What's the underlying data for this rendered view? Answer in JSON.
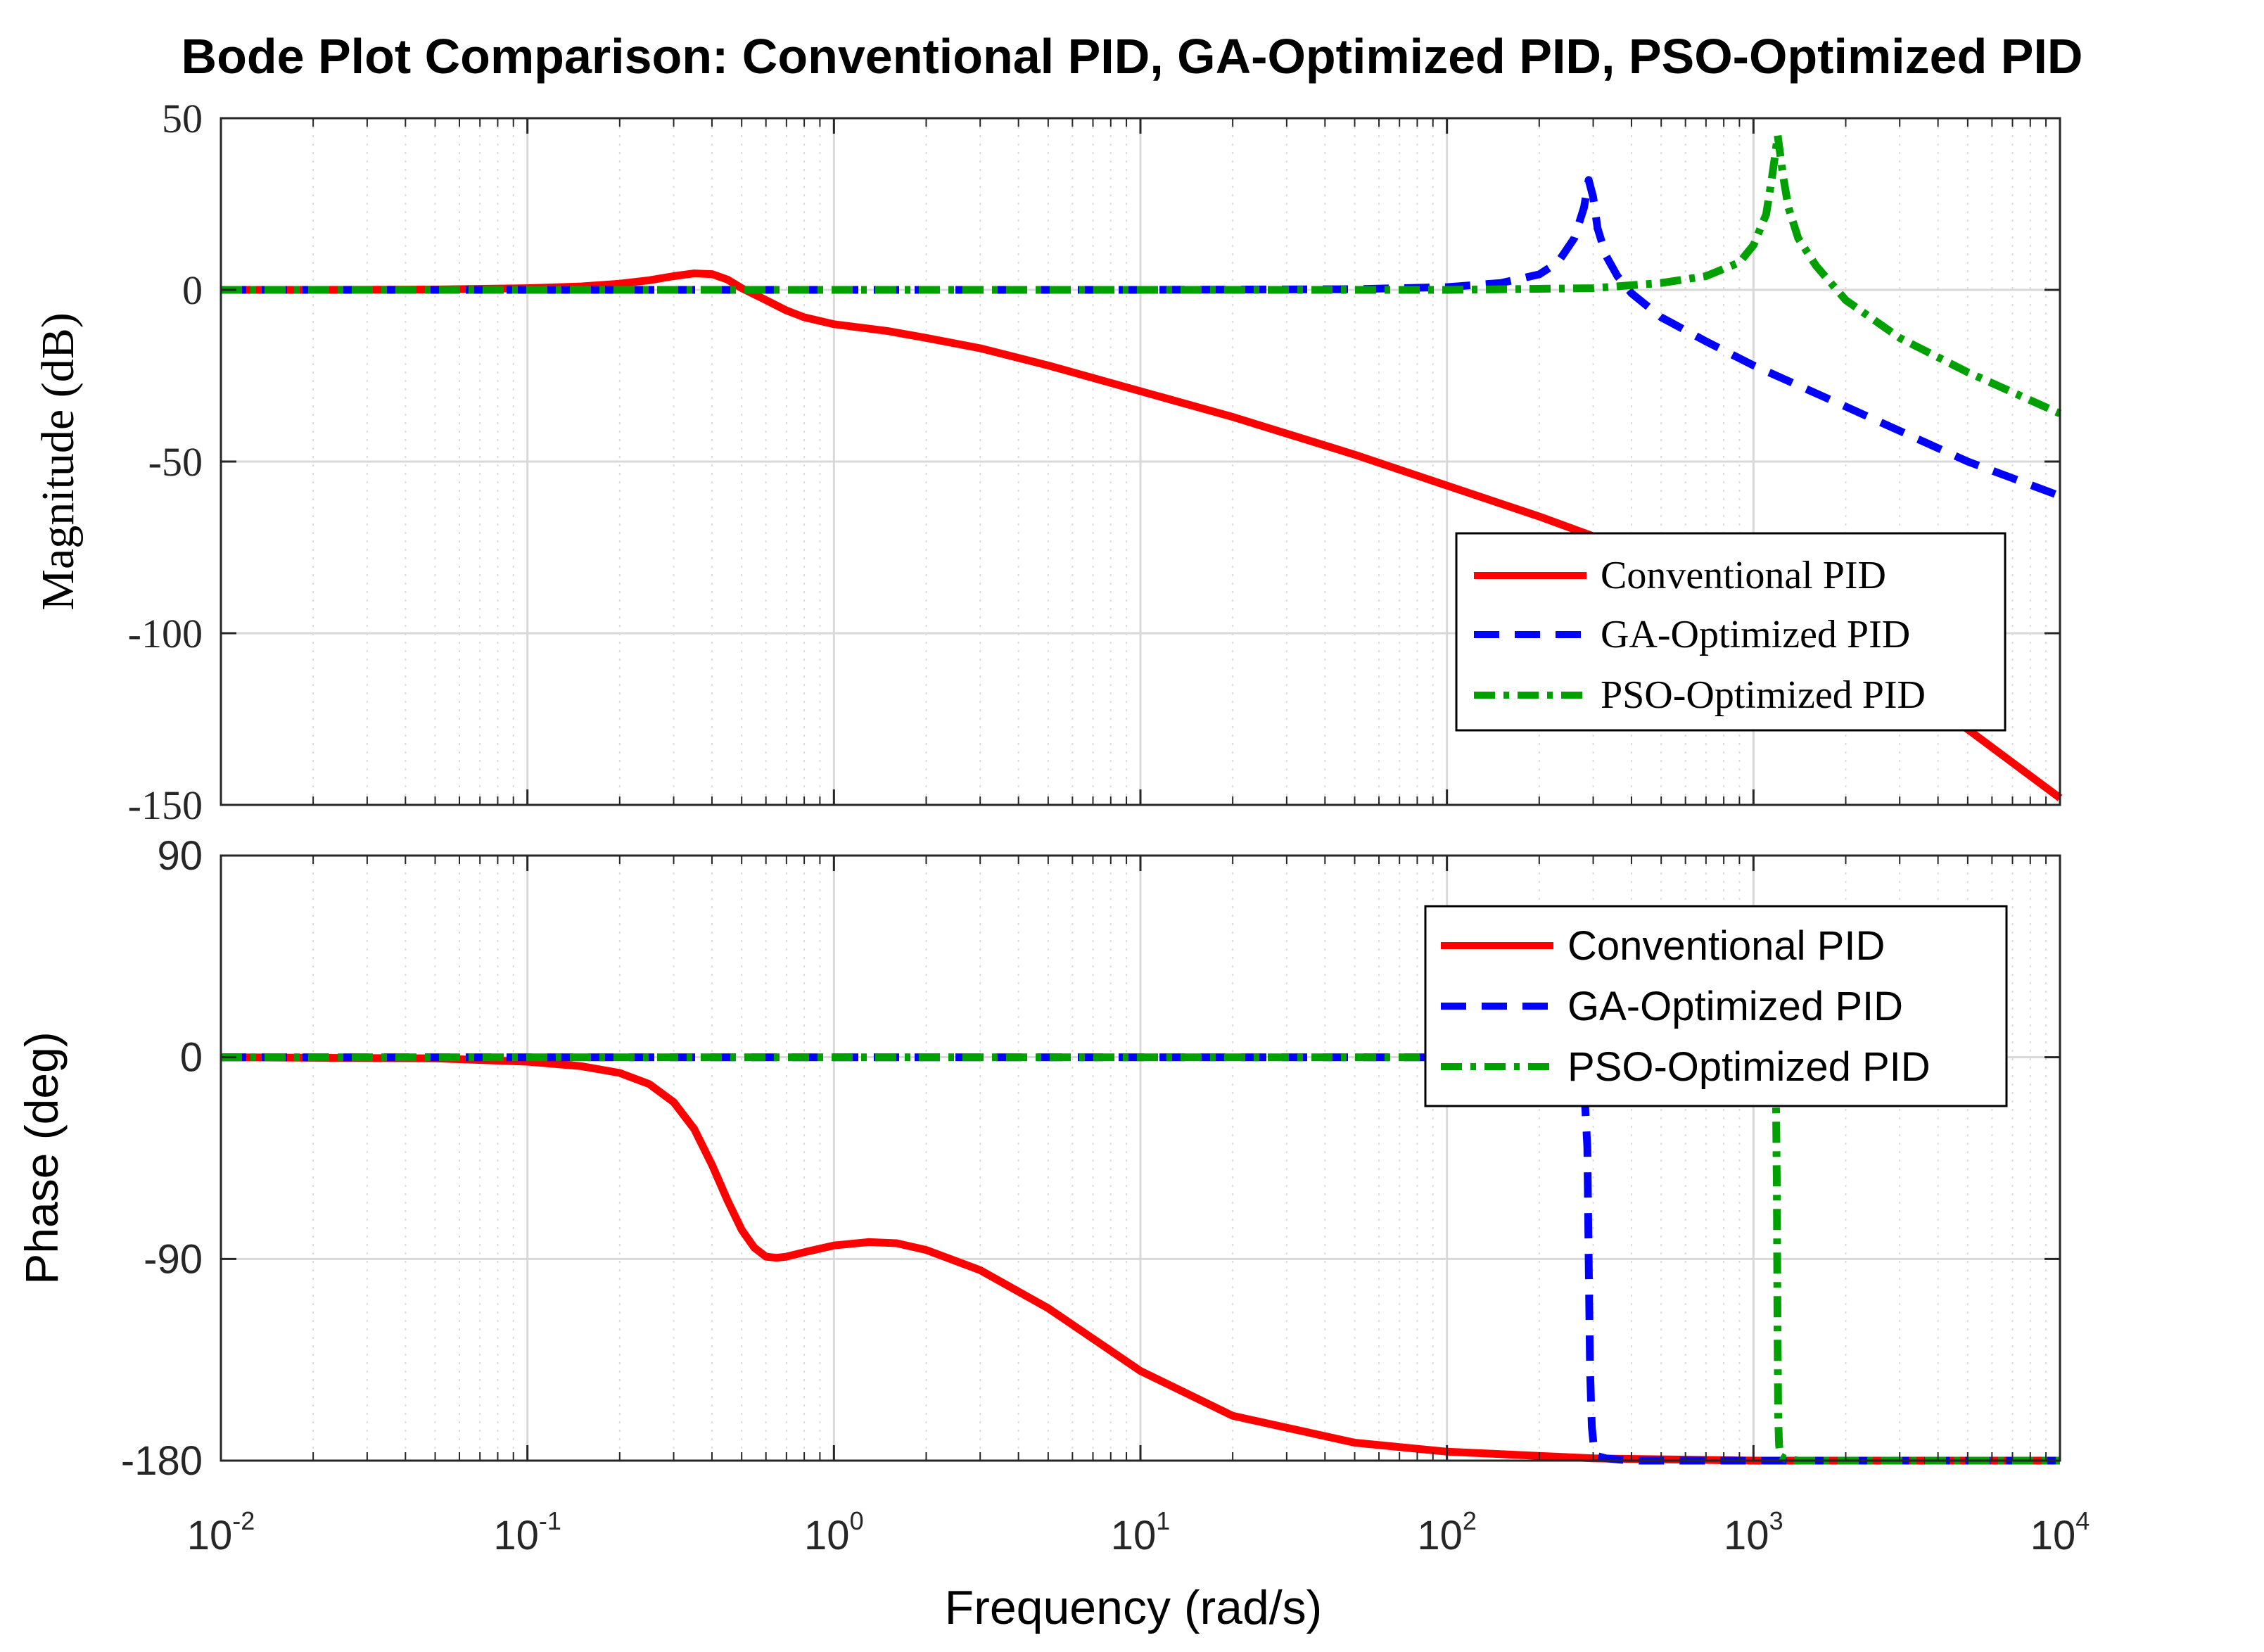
{
  "chart_data": {
    "type": "line",
    "title": "Bode Plot Comparison: Conventional PID, GA-Optimized PID, PSO-Optimized PID",
    "xlabel": "Frequency  (rad/s)",
    "xscale": "log",
    "xlim": [
      0.01,
      10000
    ],
    "x_ticks": [
      {
        "base": "10",
        "exp": "-2"
      },
      {
        "base": "10",
        "exp": "-1"
      },
      {
        "base": "10",
        "exp": "0"
      },
      {
        "base": "10",
        "exp": "1"
      },
      {
        "base": "10",
        "exp": "2"
      },
      {
        "base": "10",
        "exp": "3"
      },
      {
        "base": "10",
        "exp": "4"
      }
    ],
    "grid": true,
    "subplots": [
      {
        "name": "magnitude",
        "ylabel": "Magnitude (dB)",
        "ylim": [
          -150,
          50
        ],
        "yticks": [
          50,
          0,
          -50,
          -100,
          -150
        ],
        "ytick_labels": [
          "50",
          "0",
          "-50",
          "-100",
          "-150"
        ],
        "legend_position": "lower-right",
        "legend_entries": [
          "Conventional PID",
          "GA-Optimized PID",
          "PSO-Optimized PID"
        ],
        "series": [
          {
            "name": "Conventional PID",
            "color": "#ff0000",
            "style": "solid",
            "x": [
              0.01,
              0.02,
              0.05,
              0.1,
              0.15,
              0.2,
              0.25,
              0.3,
              0.35,
              0.4,
              0.45,
              0.5,
              0.6,
              0.7,
              0.8,
              1,
              1.5,
              2,
              3,
              5,
              10,
              20,
              50,
              100,
              200,
              500,
              1000,
              2000,
              5000,
              10000
            ],
            "y": [
              0,
              0,
              0.1,
              0.5,
              1,
              1.8,
              2.8,
              4,
              4.8,
              4.6,
              3,
              0.5,
              -3,
              -6,
              -8,
              -10,
              -12,
              -14,
              -17,
              -22,
              -29.5,
              -37,
              -48,
              -57,
              -66,
              -79,
              -90,
              -103,
              -128,
              -148
            ]
          },
          {
            "name": "GA-Optimized PID",
            "color": "#0000ff",
            "style": "dashed",
            "x": [
              0.01,
              1,
              10,
              50,
              100,
              150,
              200,
              230,
              260,
              280,
              290,
              300,
              310,
              330,
              360,
              400,
              500,
              700,
              1000,
              2000,
              5000,
              10000
            ],
            "y": [
              0,
              0,
              0,
              0.2,
              0.8,
              2,
              4.5,
              8,
              15,
              24,
              32,
              27,
              18,
              10,
              4,
              -1,
              -8,
              -15,
              -22,
              -34,
              -50,
              -60
            ]
          },
          {
            "name": "PSO-Optimized PID",
            "color": "#00a000",
            "style": "dashdot",
            "x": [
              0.01,
              1,
              10,
              100,
              300,
              500,
              700,
              900,
              1000,
              1100,
              1150,
              1180,
              1200,
              1220,
              1250,
              1300,
              1400,
              1600,
              2000,
              3000,
              5000,
              10000
            ],
            "y": [
              0,
              0,
              0,
              0,
              0.5,
              2,
              4,
              8,
              13,
              22,
              33,
              40,
              45,
              40,
              33,
              24,
              15,
              7,
              -3,
              -14,
              -24,
              -36
            ]
          }
        ]
      },
      {
        "name": "phase",
        "ylabel": "Phase (deg)",
        "ylim": [
          -180,
          90
        ],
        "yticks": [
          90,
          0,
          -90,
          -180
        ],
        "ytick_labels": [
          "90",
          "0",
          "-90",
          "-180"
        ],
        "legend_position": "top-right",
        "legend_entries": [
          "Conventional PID",
          "GA-Optimized PID",
          "PSO-Optimized PID"
        ],
        "series": [
          {
            "name": "Conventional PID",
            "color": "#ff0000",
            "style": "solid",
            "x": [
              0.01,
              0.05,
              0.1,
              0.15,
              0.2,
              0.25,
              0.3,
              0.35,
              0.4,
              0.45,
              0.5,
              0.55,
              0.6,
              0.65,
              0.7,
              0.8,
              1,
              1.3,
              1.6,
              2,
              3,
              5,
              10,
              20,
              50,
              100,
              300,
              1000,
              10000
            ],
            "y": [
              0,
              -0.5,
              -2,
              -4,
              -7,
              -12,
              -20,
              -32,
              -48,
              -64,
              -77,
              -85,
              -89,
              -89.5,
              -89,
              -87,
              -84,
              -82.5,
              -83,
              -86,
              -95,
              -112,
              -140,
              -160,
              -172,
              -176,
              -179,
              -180,
              -180
            ]
          },
          {
            "name": "GA-Optimized PID",
            "color": "#0000ff",
            "style": "dashed",
            "x": [
              0.01,
              100,
              200,
              260,
              275,
              282,
              287,
              290,
              293,
              297,
              302,
              310,
              330,
              400,
              10000
            ],
            "y": [
              0,
              0,
              0,
              -1,
              -5,
              -20,
              -40,
              -90,
              -140,
              -165,
              -175,
              -178,
              -179,
              -180,
              -180
            ]
          },
          {
            "name": "PSO-Optimized PID",
            "color": "#00a000",
            "style": "dashdot",
            "x": [
              0.01,
              500,
              1000,
              1150,
              1175,
              1185,
              1192,
              1198,
              1204,
              1212,
              1225,
              1260,
              1400,
              10000
            ],
            "y": [
              0,
              0,
              0,
              -1,
              -5,
              -20,
              -60,
              -120,
              -160,
              -173,
              -178,
              -179,
              -180,
              -180
            ]
          }
        ]
      }
    ]
  }
}
